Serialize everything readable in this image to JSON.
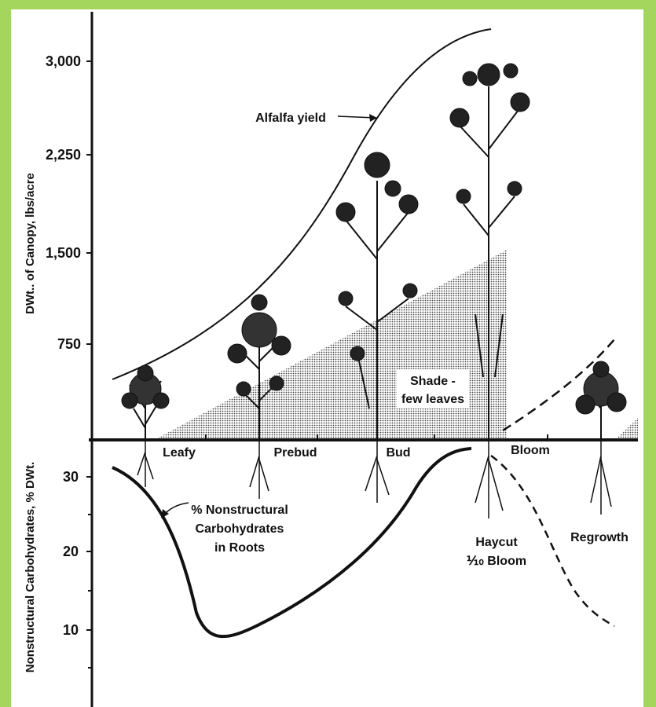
{
  "axes": {
    "top_label": "DWt.. of Canopy, lbs/acre",
    "bottom_label": "Nonstructural Carbohydrates, % DWt.",
    "top_ticks": [
      "3,000",
      "2,250",
      "1,500",
      "750"
    ],
    "bottom_ticks": [
      "30",
      "20",
      "10"
    ]
  },
  "annotations": {
    "yield": "Alfalfa yield",
    "shade": [
      "Shade -",
      "few leaves"
    ],
    "carbs": [
      "% Nonstructural",
      "Carbohydrates",
      "in Roots"
    ],
    "haycut": [
      "Haycut",
      "⅒ Bloom"
    ],
    "regrowth": "Regrowth"
  },
  "stages": [
    "Leafy",
    "Prebud",
    "Bud",
    "Bloom"
  ]
}
